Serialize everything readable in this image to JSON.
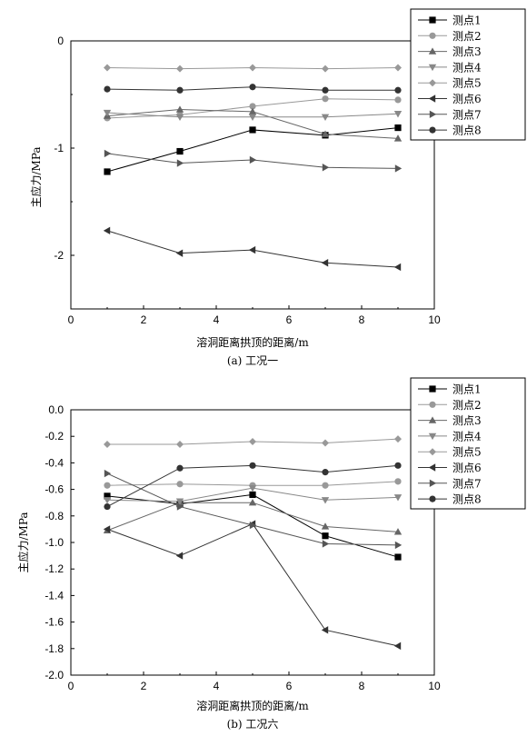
{
  "chart_data": [
    {
      "type": "line",
      "caption": "(a) 工况一",
      "xlabel": "溶洞距离拱顶的距离/m",
      "ylabel": "主应力/MPa",
      "xlim": [
        0,
        10
      ],
      "ylim": [
        -2.5,
        0
      ],
      "xticks": [
        0,
        2,
        4,
        6,
        8,
        10
      ],
      "yticks": [
        0,
        -1,
        -2
      ],
      "ytick_labels": [
        "0",
        "-1",
        "-2"
      ],
      "x": [
        1,
        3,
        5,
        7,
        9
      ],
      "legend_position": "top-right",
      "series": [
        {
          "name": "测点1",
          "marker": "square",
          "color": "#000000",
          "values": [
            -1.22,
            -1.03,
            -0.83,
            -0.88,
            -0.81
          ]
        },
        {
          "name": "测点2",
          "marker": "circle",
          "color": "#999999",
          "values": [
            -0.72,
            -0.69,
            -0.61,
            -0.54,
            -0.55
          ]
        },
        {
          "name": "测点3",
          "marker": "triangle-up",
          "color": "#666666",
          "values": [
            -0.7,
            -0.64,
            -0.66,
            -0.87,
            -0.91
          ]
        },
        {
          "name": "测点4",
          "marker": "triangle-down",
          "color": "#888888",
          "values": [
            -0.67,
            -0.71,
            -0.71,
            -0.71,
            -0.68
          ]
        },
        {
          "name": "测点5",
          "marker": "diamond",
          "color": "#999999",
          "values": [
            -0.25,
            -0.26,
            -0.25,
            -0.26,
            -0.25
          ]
        },
        {
          "name": "测点6",
          "marker": "triangle-left",
          "color": "#333333",
          "values": [
            -1.77,
            -1.98,
            -1.95,
            -2.07,
            -2.11
          ]
        },
        {
          "name": "测点7",
          "marker": "triangle-right",
          "color": "#555555",
          "values": [
            -1.05,
            -1.14,
            -1.11,
            -1.18,
            -1.19
          ]
        },
        {
          "name": "测点8",
          "marker": "circle",
          "color": "#333333",
          "values": [
            -0.45,
            -0.46,
            -0.43,
            -0.46,
            -0.46
          ]
        }
      ]
    },
    {
      "type": "line",
      "caption": "(b) 工况六",
      "xlabel": "溶洞距离拱顶的距离/m",
      "ylabel": "主应力/MPa",
      "xlim": [
        0,
        10
      ],
      "ylim": [
        -2.0,
        0
      ],
      "xticks": [
        0,
        2,
        4,
        6,
        8,
        10
      ],
      "yticks": [
        0,
        -0.2,
        -0.4,
        -0.6,
        -0.8,
        -1.0,
        -1.2,
        -1.4,
        -1.6,
        -1.8,
        -2.0
      ],
      "ytick_labels": [
        "0.0",
        "-0.2",
        "-0.4",
        "-0.6",
        "-0.8",
        "-1.0",
        "-1.2",
        "-1.4",
        "-1.6",
        "-1.8",
        "-2.0"
      ],
      "x": [
        1,
        3,
        5,
        7,
        9
      ],
      "legend_position": "top-right",
      "series": [
        {
          "name": "测点1",
          "marker": "square",
          "color": "#000000",
          "values": [
            -0.65,
            -0.71,
            -0.64,
            -0.95,
            -1.11
          ]
        },
        {
          "name": "测点2",
          "marker": "circle",
          "color": "#999999",
          "values": [
            -0.57,
            -0.56,
            -0.57,
            -0.57,
            -0.54
          ]
        },
        {
          "name": "测点3",
          "marker": "triangle-up",
          "color": "#666666",
          "values": [
            -0.91,
            -0.7,
            -0.7,
            -0.88,
            -0.92
          ]
        },
        {
          "name": "测点4",
          "marker": "triangle-down",
          "color": "#888888",
          "values": [
            -0.68,
            -0.69,
            -0.59,
            -0.68,
            -0.66
          ]
        },
        {
          "name": "测点5",
          "marker": "diamond",
          "color": "#999999",
          "values": [
            -0.26,
            -0.26,
            -0.24,
            -0.25,
            -0.22
          ]
        },
        {
          "name": "测点6",
          "marker": "triangle-left",
          "color": "#333333",
          "values": [
            -0.9,
            -1.1,
            -0.86,
            -1.66,
            -1.78
          ]
        },
        {
          "name": "测点7",
          "marker": "triangle-right",
          "color": "#555555",
          "values": [
            -0.48,
            -0.73,
            -0.87,
            -1.01,
            -1.02
          ]
        },
        {
          "name": "测点8",
          "marker": "circle",
          "color": "#333333",
          "values": [
            -0.73,
            -0.44,
            -0.42,
            -0.47,
            -0.42
          ]
        }
      ]
    }
  ]
}
